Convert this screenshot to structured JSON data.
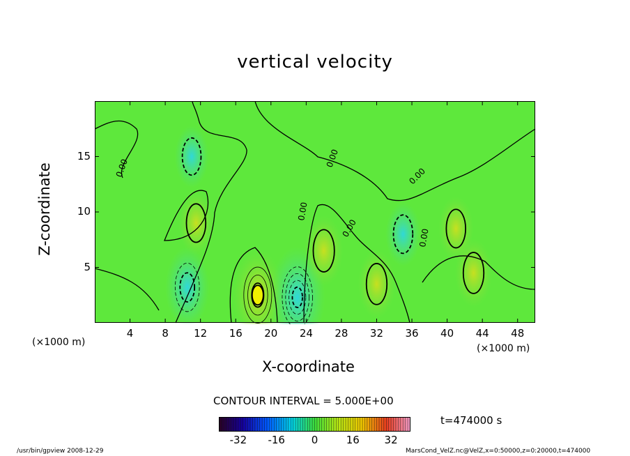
{
  "chart_data": {
    "type": "heatmap",
    "title": "vertical velocity",
    "xlabel": "X-coordinate",
    "ylabel": "Z-coordinate",
    "x_unit_label": "(×1000 m)",
    "y_unit_label": "(×1000 m)",
    "xlim": [
      0,
      50
    ],
    "ylim": [
      0,
      20
    ],
    "x_ticks": [
      4,
      8,
      12,
      16,
      20,
      24,
      28,
      32,
      36,
      40,
      44,
      48
    ],
    "y_ticks": [
      5,
      10,
      15
    ],
    "contour_interval_label": "CONTOUR INTERVAL = 5.000E+00",
    "contour_interval": 5,
    "zero_contour_label": "0.00",
    "time_label": "t=474000 s",
    "colorbar": {
      "range": [
        -40,
        40
      ],
      "ticks": [
        -32,
        -16,
        0,
        16,
        32
      ],
      "tick_labels": [
        "-32",
        "-16",
        "0",
        "16",
        "32"
      ]
    },
    "features": [
      {
        "kind": "min",
        "x": 10.5,
        "z": 3.2,
        "value": -12
      },
      {
        "kind": "min",
        "x": 23.0,
        "z": 2.3,
        "value": -22
      },
      {
        "kind": "max",
        "x": 18.5,
        "z": 2.5,
        "value": 18
      },
      {
        "kind": "max",
        "x": 26.0,
        "z": 6.5,
        "value": 7
      },
      {
        "kind": "max",
        "x": 32.0,
        "z": 3.5,
        "value": 6
      },
      {
        "kind": "max",
        "x": 43.0,
        "z": 4.5,
        "value": 6
      },
      {
        "kind": "max",
        "x": 11.5,
        "z": 9.0,
        "value": 4
      },
      {
        "kind": "max",
        "x": 41.0,
        "z": 8.5,
        "value": 4
      },
      {
        "kind": "min",
        "x": 35.0,
        "z": 8.0,
        "value": -4
      },
      {
        "kind": "min",
        "x": 11.0,
        "z": 15.0,
        "value": -3
      }
    ]
  },
  "footer": {
    "left": "/usr/bin/gpview   2008-12-29",
    "right": "MarsCond_VelZ.nc@VelZ,x=0:50000,z=0:20000,t=474000"
  }
}
